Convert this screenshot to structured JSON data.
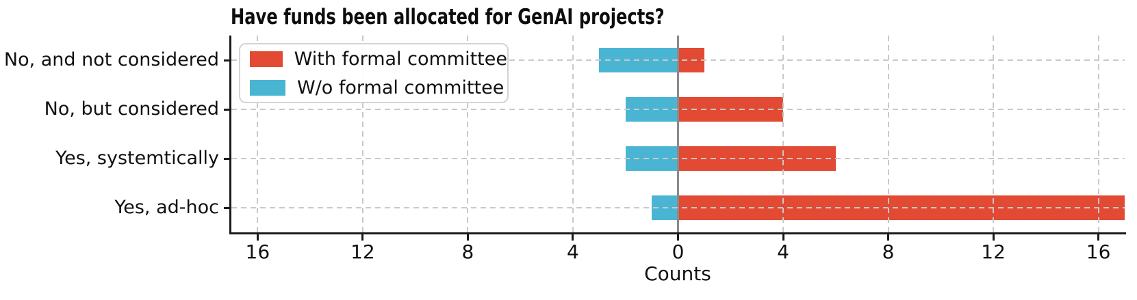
{
  "chart_data": {
    "type": "bar",
    "orientation": "horizontal-diverging",
    "title": "Have funds been allocated for GenAI projects?",
    "xlabel": "Counts",
    "categories": [
      "No, and not considered",
      "No, but considered",
      "Yes, systemtically",
      "Yes, ad-hoc"
    ],
    "series": [
      {
        "name": "With formal committee",
        "color": "#e24a33",
        "direction": "right",
        "values": [
          1,
          4,
          6,
          17
        ]
      },
      {
        "name": "W/o formal committee",
        "color": "#4ab5d3",
        "direction": "left",
        "values": [
          3,
          2,
          2,
          1
        ]
      }
    ],
    "xlim": [
      -17,
      17
    ],
    "xticks": [
      -16,
      -12,
      -8,
      -4,
      0,
      4,
      8,
      12,
      16
    ],
    "xtick_labels": [
      "16",
      "12",
      "8",
      "4",
      "0",
      "4",
      "8",
      "12",
      "16"
    ],
    "grid": true,
    "grid_style": "dashed",
    "grid_color": "#c9c9c9",
    "zero_line_color": "#8a8a8a",
    "legend_position": "upper left",
    "legend_title": ""
  }
}
